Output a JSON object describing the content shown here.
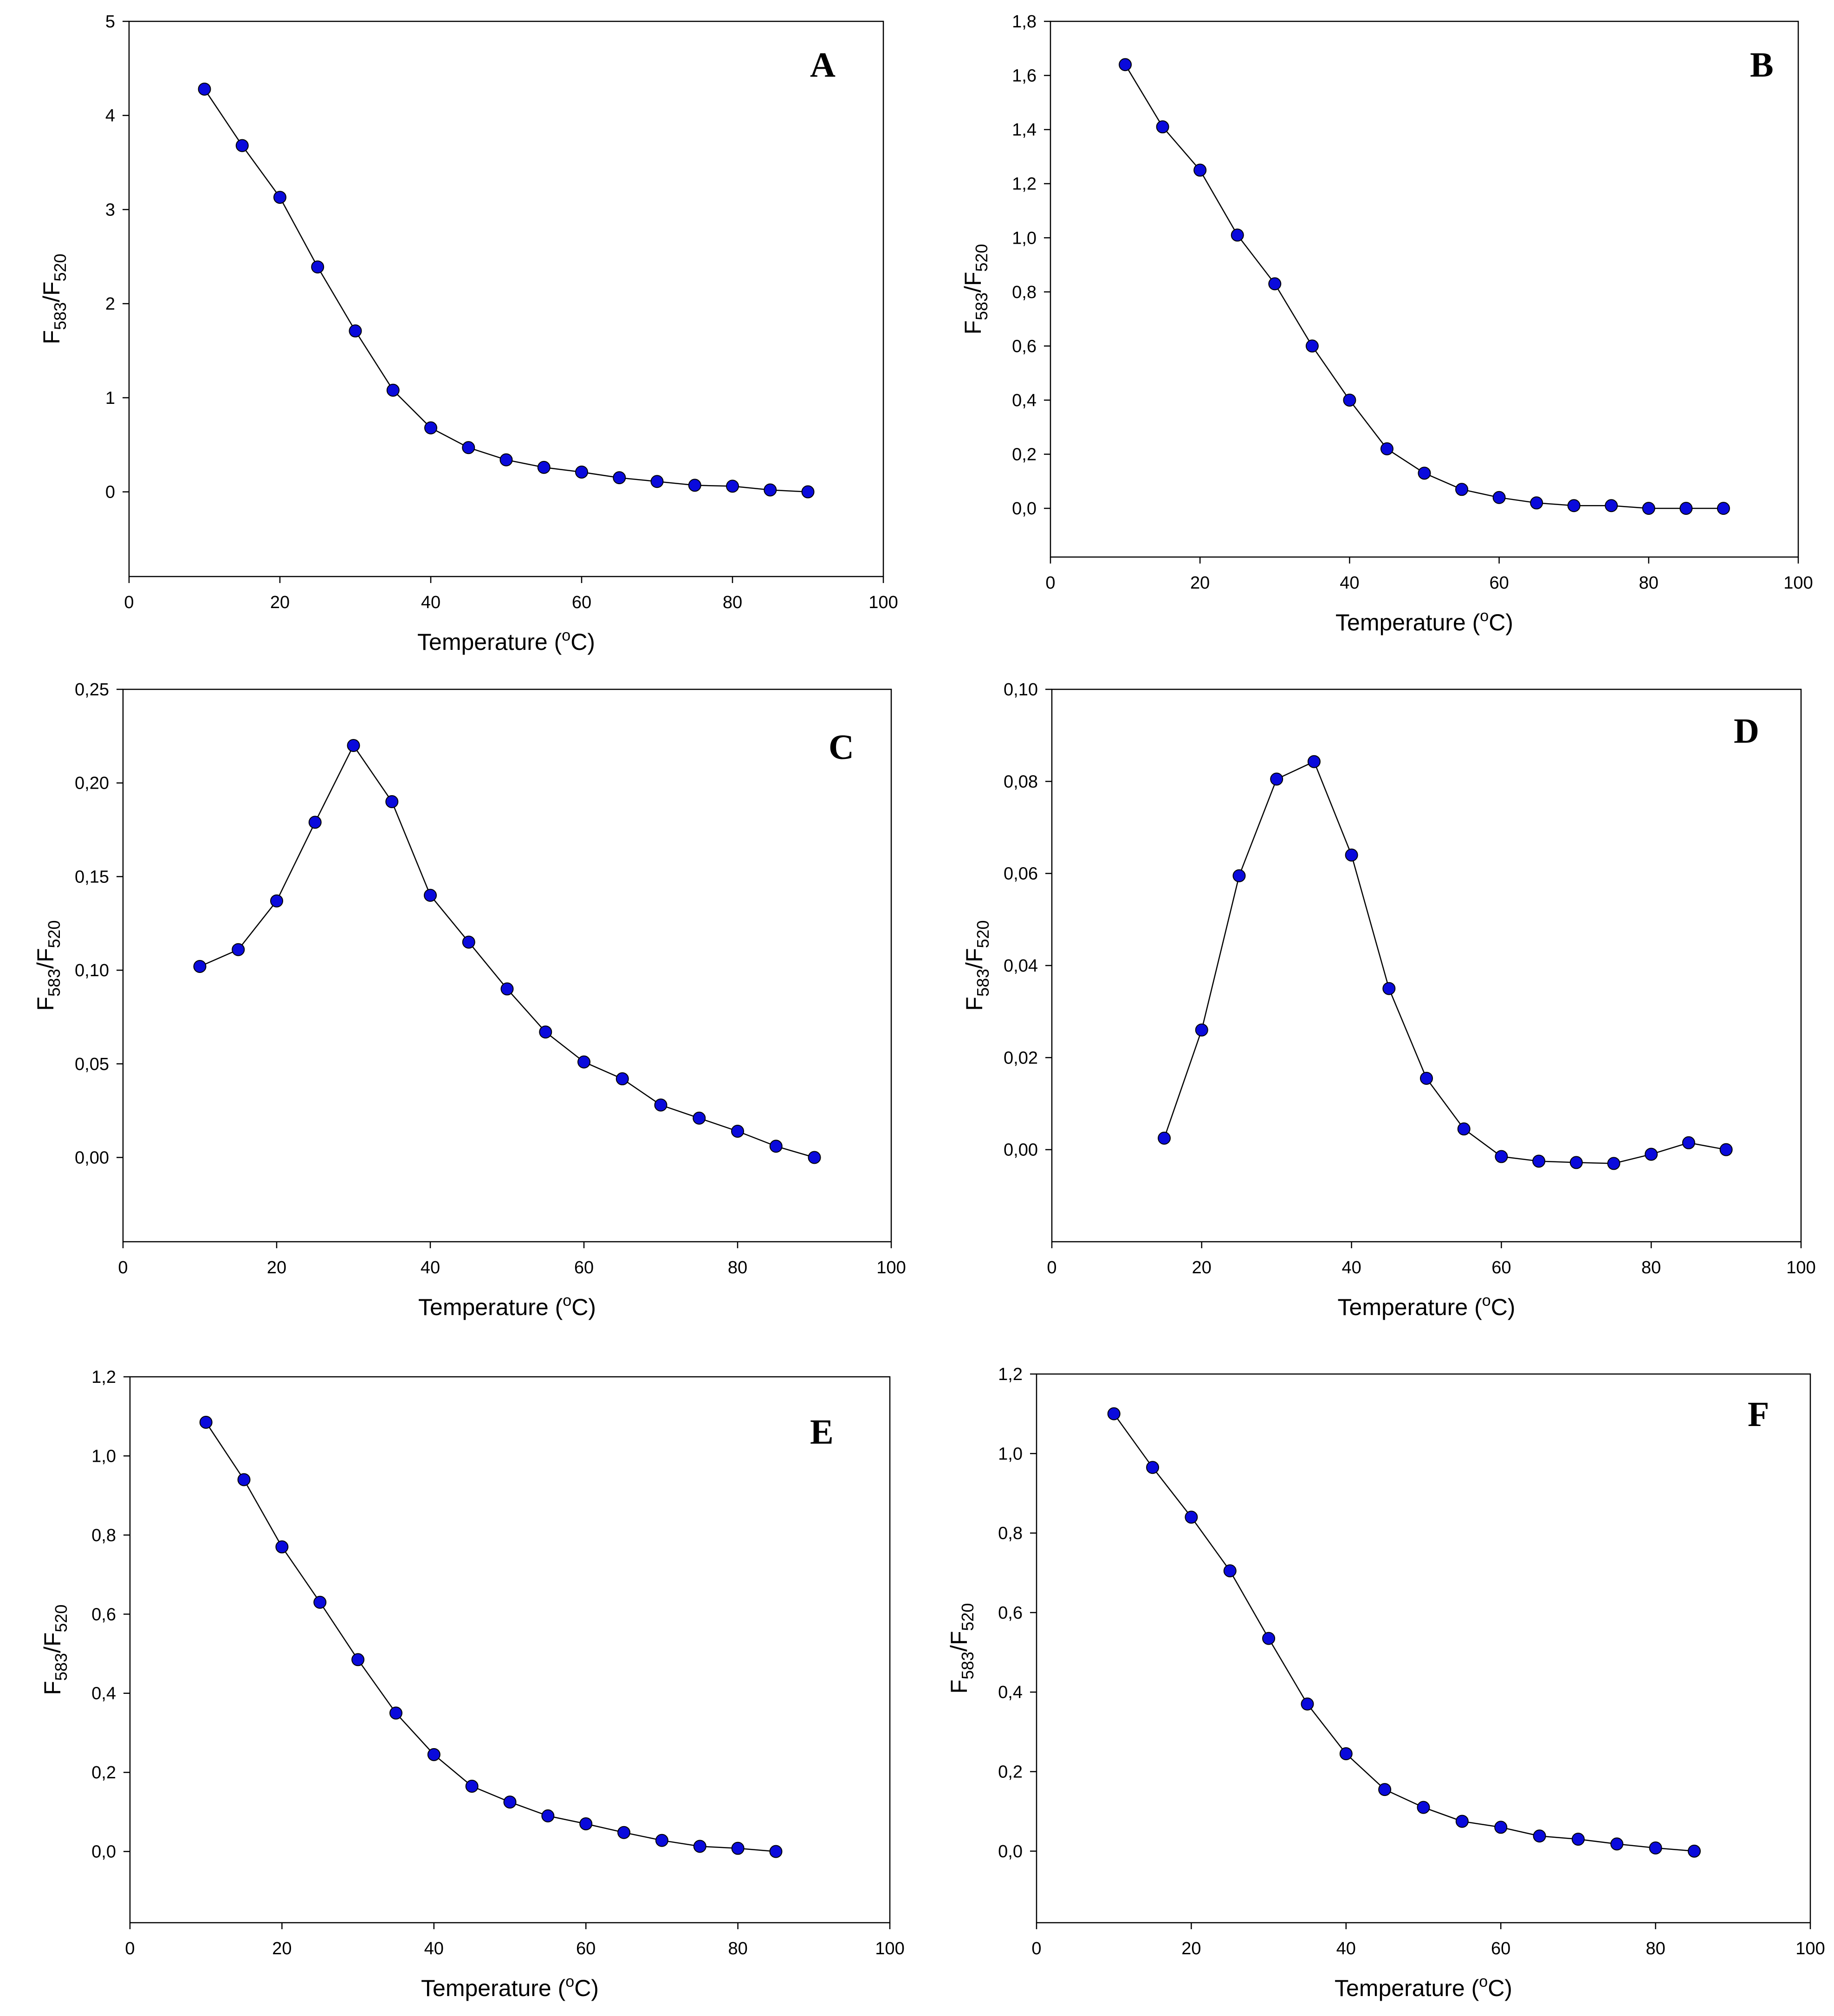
{
  "chart_data": [
    {
      "type": "line",
      "panel": "A",
      "xlabel": "Temperature (°C)",
      "ylabel_main": "F",
      "ylabel_sub1": "583",
      "ylabel_sep": "/F",
      "ylabel_sub2": "520",
      "xlim": [
        0,
        100
      ],
      "ylim": [
        -0.9,
        5
      ],
      "xticks": [
        0,
        20,
        40,
        60,
        80,
        100
      ],
      "xtick_labels": [
        "0",
        "20",
        "40",
        "60",
        "80",
        "100"
      ],
      "yticks": [
        0,
        1,
        2,
        3,
        4,
        5
      ],
      "ytick_labels": [
        "0",
        "1",
        "2",
        "3",
        "4",
        "5"
      ],
      "x": [
        10,
        15,
        20,
        25,
        30,
        35,
        40,
        45,
        50,
        55,
        60,
        65,
        70,
        75,
        80,
        85,
        90
      ],
      "y": [
        4.28,
        3.68,
        3.13,
        2.39,
        1.71,
        1.08,
        0.68,
        0.47,
        0.34,
        0.26,
        0.21,
        0.15,
        0.11,
        0.07,
        0.06,
        0.02,
        0.0
      ]
    },
    {
      "type": "line",
      "panel": "B",
      "xlabel": "Temperature (°C)",
      "ylabel_main": "F",
      "ylabel_sub1": "583",
      "ylabel_sep": "/F",
      "ylabel_sub2": "520",
      "xlim": [
        0,
        100
      ],
      "ylim": [
        -0.18,
        1.8
      ],
      "xticks": [
        0,
        20,
        40,
        60,
        80,
        100
      ],
      "xtick_labels": [
        "0",
        "20",
        "40",
        "60",
        "80",
        "100"
      ],
      "yticks": [
        0,
        0.2,
        0.4,
        0.6,
        0.8,
        1.0,
        1.2,
        1.4,
        1.6,
        1.8
      ],
      "ytick_labels": [
        "0,0",
        "0,2",
        "0,4",
        "0,6",
        "0,8",
        "1,0",
        "1,2",
        "1,4",
        "1,6",
        "1,8"
      ],
      "x": [
        10,
        15,
        20,
        25,
        30,
        35,
        40,
        45,
        50,
        55,
        60,
        65,
        70,
        75,
        80,
        85,
        90
      ],
      "y": [
        1.64,
        1.41,
        1.25,
        1.01,
        0.83,
        0.6,
        0.4,
        0.22,
        0.13,
        0.07,
        0.04,
        0.02,
        0.01,
        0.01,
        0.0,
        0.0,
        0.0
      ]
    },
    {
      "type": "line",
      "panel": "C",
      "xlabel": "Temperature (°C)",
      "ylabel_main": "F",
      "ylabel_sub1": "583",
      "ylabel_sep": "/F",
      "ylabel_sub2": "520",
      "xlim": [
        0,
        100
      ],
      "ylim": [
        -0.045,
        0.25
      ],
      "xticks": [
        0,
        20,
        40,
        60,
        80,
        100
      ],
      "xtick_labels": [
        "0",
        "20",
        "40",
        "60",
        "80",
        "100"
      ],
      "yticks": [
        0,
        0.05,
        0.1,
        0.15,
        0.2,
        0.25
      ],
      "ytick_labels": [
        "0,00",
        "0,05",
        "0,10",
        "0,15",
        "0,20",
        "0,25"
      ],
      "x": [
        10,
        15,
        20,
        25,
        30,
        35,
        40,
        45,
        50,
        55,
        60,
        65,
        70,
        75,
        80,
        85,
        90
      ],
      "y": [
        0.102,
        0.111,
        0.137,
        0.179,
        0.22,
        0.19,
        0.14,
        0.115,
        0.09,
        0.067,
        0.051,
        0.042,
        0.028,
        0.021,
        0.014,
        0.006,
        0.0
      ]
    },
    {
      "type": "line",
      "panel": "D",
      "xlabel": "Temperature (°C)",
      "ylabel_main": "F",
      "ylabel_sub1": "583",
      "ylabel_sep": "/F",
      "ylabel_sub2": "520",
      "xlim": [
        0,
        100
      ],
      "ylim": [
        -0.02,
        0.1
      ],
      "xticks": [
        0,
        20,
        40,
        60,
        80,
        100
      ],
      "xtick_labels": [
        "0",
        "20",
        "40",
        "60",
        "80",
        "100"
      ],
      "yticks": [
        0,
        0.02,
        0.04,
        0.06,
        0.08,
        0.1
      ],
      "ytick_labels": [
        "0,00",
        "0,02",
        "0,04",
        "0,06",
        "0,08",
        "0,10"
      ],
      "x": [
        15,
        20,
        25,
        30,
        35,
        40,
        45,
        50,
        55,
        60,
        65,
        70,
        75,
        80,
        85,
        90
      ],
      "y": [
        0.0025,
        0.026,
        0.0595,
        0.0805,
        0.0843,
        0.064,
        0.035,
        0.0155,
        0.0045,
        -0.0015,
        -0.0025,
        -0.0028,
        -0.003,
        -0.001,
        0.0015,
        0.0
      ]
    },
    {
      "type": "line",
      "panel": "E",
      "xlabel": "Temperature (°C)",
      "ylabel_main": "F",
      "ylabel_sub1": "583",
      "ylabel_sep": "/F",
      "ylabel_sub2": "520",
      "xlim": [
        0,
        100
      ],
      "ylim": [
        -0.18,
        1.2
      ],
      "xticks": [
        0,
        20,
        40,
        60,
        80,
        100
      ],
      "xtick_labels": [
        "0",
        "20",
        "40",
        "60",
        "80",
        "100"
      ],
      "yticks": [
        0,
        0.2,
        0.4,
        0.6,
        0.8,
        1.0,
        1.2
      ],
      "ytick_labels": [
        "0,0",
        "0,2",
        "0,4",
        "0,6",
        "0,8",
        "1,0",
        "1,2"
      ],
      "x": [
        10,
        15,
        20,
        25,
        30,
        35,
        40,
        45,
        50,
        55,
        60,
        65,
        70,
        75,
        80,
        85
      ],
      "y": [
        1.085,
        0.94,
        0.77,
        0.63,
        0.485,
        0.35,
        0.245,
        0.165,
        0.125,
        0.09,
        0.07,
        0.048,
        0.028,
        0.013,
        0.008,
        0.0
      ]
    },
    {
      "type": "line",
      "panel": "F",
      "xlabel": "Temperature (°C)",
      "ylabel_main": "F",
      "ylabel_sub1": "583",
      "ylabel_sep": "/F",
      "ylabel_sub2": "520",
      "xlim": [
        0,
        100
      ],
      "ylim": [
        -0.18,
        1.2
      ],
      "xticks": [
        0,
        20,
        40,
        60,
        80,
        100
      ],
      "xtick_labels": [
        "0",
        "20",
        "40",
        "60",
        "80",
        "100"
      ],
      "yticks": [
        0,
        0.2,
        0.4,
        0.6,
        0.8,
        1.0,
        1.2
      ],
      "ytick_labels": [
        "0,0",
        "0,2",
        "0,4",
        "0,6",
        "0,8",
        "1,0",
        "1,2"
      ],
      "x": [
        10,
        15,
        20,
        25,
        30,
        35,
        40,
        45,
        50,
        55,
        60,
        65,
        70,
        75,
        80,
        85
      ],
      "y": [
        1.1,
        0.965,
        0.84,
        0.705,
        0.535,
        0.37,
        0.245,
        0.155,
        0.11,
        0.075,
        0.06,
        0.038,
        0.03,
        0.018,
        0.008,
        0.0
      ]
    }
  ],
  "colors": {
    "marker_fill": "#0a0adc",
    "marker_edge": "#000000",
    "line": "#000000"
  }
}
